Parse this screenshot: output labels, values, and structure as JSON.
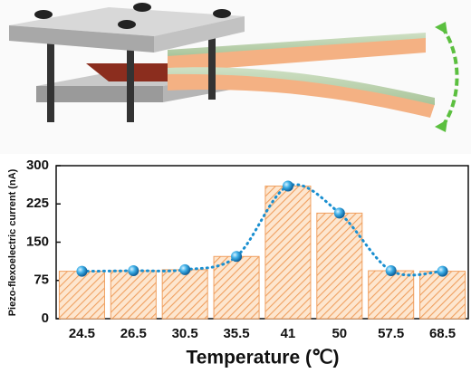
{
  "chart_data": {
    "type": "bar",
    "x_label": "Temperature (℃)",
    "y_label": "Piezo-flexoelectric current (nA)",
    "categories": [
      "24.5",
      "26.5",
      "30.5",
      "35.5",
      "41",
      "50",
      "57.5",
      "68.5"
    ],
    "values": [
      93,
      94,
      96,
      122,
      260,
      207,
      94,
      93
    ],
    "color": "#f0a060",
    "line_overlay": true,
    "line_color": "#1a8fd0",
    "ylim": [
      0,
      300
    ],
    "yticks": [
      0,
      75,
      150,
      225,
      300
    ]
  }
}
